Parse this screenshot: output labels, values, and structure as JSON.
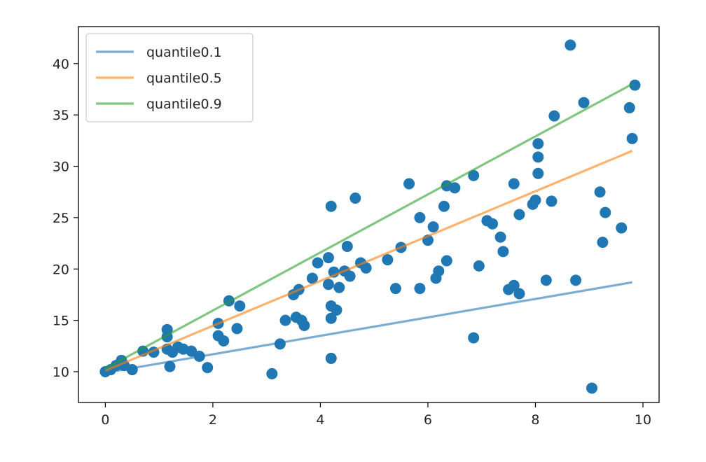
{
  "chart_data": {
    "type": "scatter",
    "title": "",
    "xlabel": "",
    "ylabel": "",
    "xlim": [
      -0.5,
      10.3
    ],
    "ylim": [
      7.0,
      43.6
    ],
    "x_ticks": [
      0,
      2,
      4,
      6,
      8,
      10
    ],
    "y_ticks": [
      10,
      15,
      20,
      25,
      30,
      35,
      40
    ],
    "grid": false,
    "legend_position": "upper-left",
    "colors": {
      "points": "#1f77b4",
      "quantile0.1": "#1f77b4",
      "quantile0.5": "#ff7f0e",
      "quantile0.9": "#2ca02c"
    },
    "lines": [
      {
        "name": "quantile0.1",
        "x": [
          0,
          9.8
        ],
        "y": [
          9.9,
          18.7
        ]
      },
      {
        "name": "quantile0.5",
        "x": [
          0,
          9.8
        ],
        "y": [
          10.1,
          31.5
        ]
      },
      {
        "name": "quantile0.9",
        "x": [
          0,
          9.8
        ],
        "y": [
          10.3,
          38.0
        ]
      }
    ],
    "points": [
      [
        0.0,
        10.0
      ],
      [
        0.1,
        10.2
      ],
      [
        0.2,
        10.6
      ],
      [
        0.3,
        11.1
      ],
      [
        0.35,
        10.6
      ],
      [
        0.5,
        10.2
      ],
      [
        0.7,
        12.0
      ],
      [
        0.9,
        11.9
      ],
      [
        1.15,
        14.1
      ],
      [
        1.15,
        13.4
      ],
      [
        1.15,
        12.2
      ],
      [
        1.2,
        10.5
      ],
      [
        1.25,
        11.9
      ],
      [
        1.35,
        12.4
      ],
      [
        1.45,
        12.2
      ],
      [
        1.6,
        12.0
      ],
      [
        1.75,
        11.5
      ],
      [
        1.9,
        10.4
      ],
      [
        2.1,
        14.7
      ],
      [
        2.1,
        13.5
      ],
      [
        2.2,
        13.0
      ],
      [
        2.3,
        16.9
      ],
      [
        2.45,
        14.2
      ],
      [
        2.5,
        16.4
      ],
      [
        3.1,
        9.8
      ],
      [
        3.25,
        12.7
      ],
      [
        3.35,
        15.0
      ],
      [
        3.5,
        17.5
      ],
      [
        3.55,
        15.3
      ],
      [
        3.6,
        18.0
      ],
      [
        3.65,
        15.0
      ],
      [
        3.7,
        14.5
      ],
      [
        3.85,
        19.1
      ],
      [
        3.95,
        20.6
      ],
      [
        4.15,
        21.1
      ],
      [
        4.15,
        18.5
      ],
      [
        4.2,
        26.1
      ],
      [
        4.2,
        16.4
      ],
      [
        4.2,
        15.2
      ],
      [
        4.2,
        11.3
      ],
      [
        4.25,
        19.7
      ],
      [
        4.3,
        16.0
      ],
      [
        4.35,
        18.2
      ],
      [
        4.45,
        19.8
      ],
      [
        4.5,
        22.2
      ],
      [
        4.55,
        19.3
      ],
      [
        4.65,
        26.9
      ],
      [
        4.75,
        20.6
      ],
      [
        4.85,
        20.1
      ],
      [
        5.25,
        20.9
      ],
      [
        5.4,
        18.1
      ],
      [
        5.5,
        22.1
      ],
      [
        5.65,
        28.3
      ],
      [
        5.85,
        25.0
      ],
      [
        5.85,
        18.1
      ],
      [
        6.0,
        22.8
      ],
      [
        6.1,
        24.1
      ],
      [
        6.15,
        19.1
      ],
      [
        6.2,
        19.8
      ],
      [
        6.3,
        26.1
      ],
      [
        6.35,
        28.1
      ],
      [
        6.35,
        20.8
      ],
      [
        6.5,
        27.9
      ],
      [
        6.85,
        29.1
      ],
      [
        6.85,
        13.3
      ],
      [
        6.95,
        20.3
      ],
      [
        7.1,
        24.7
      ],
      [
        7.2,
        24.4
      ],
      [
        7.35,
        23.1
      ],
      [
        7.4,
        21.7
      ],
      [
        7.5,
        18.0
      ],
      [
        7.6,
        28.3
      ],
      [
        7.6,
        18.4
      ],
      [
        7.7,
        25.3
      ],
      [
        7.7,
        17.6
      ],
      [
        7.95,
        26.3
      ],
      [
        8.0,
        26.7
      ],
      [
        8.05,
        32.2
      ],
      [
        8.05,
        30.9
      ],
      [
        8.05,
        29.3
      ],
      [
        8.2,
        18.9
      ],
      [
        8.3,
        26.6
      ],
      [
        8.35,
        34.9
      ],
      [
        8.65,
        41.8
      ],
      [
        8.75,
        18.9
      ],
      [
        8.9,
        36.2
      ],
      [
        9.05,
        8.4
      ],
      [
        9.2,
        27.5
      ],
      [
        9.25,
        22.6
      ],
      [
        9.3,
        25.5
      ],
      [
        9.6,
        24.0
      ],
      [
        9.75,
        35.7
      ],
      [
        9.8,
        32.7
      ],
      [
        9.85,
        37.9
      ]
    ]
  }
}
